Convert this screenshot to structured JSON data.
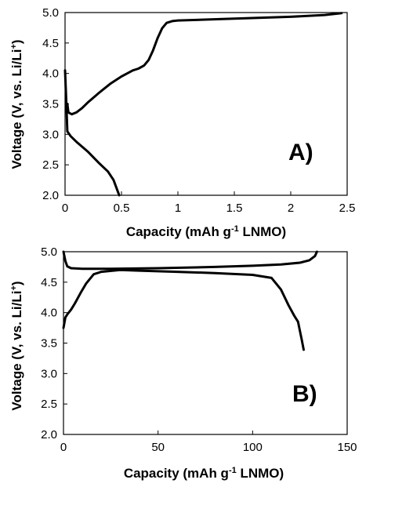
{
  "chart_data": [
    {
      "type": "line",
      "panel_label": "A)",
      "xlabel": "Capacity (mAh g-1 LNMO)",
      "xlabel_parts": {
        "pre": "Capacity (mAh g",
        "sup": "-1",
        "post": " LNMO)"
      },
      "ylabel": "Voltage (V, vs. Li/Li+)",
      "ylabel_parts": {
        "pre": "Voltage (V, vs. Li/Li",
        "sup": "+",
        "post": ")"
      },
      "xlim": [
        0,
        2.5
      ],
      "ylim": [
        2.0,
        5.0
      ],
      "xticks": [
        "0",
        "0.5",
        "1",
        "1.5",
        "2",
        "2.5"
      ],
      "yticks": [
        "2.0",
        "2.5",
        "3.0",
        "3.5",
        "4.0",
        "4.5",
        "5.0"
      ],
      "grid": false,
      "series": [
        {
          "x": [
            0.02,
            0.03,
            0.06,
            0.1,
            0.15,
            0.2,
            0.3,
            0.4,
            0.5,
            0.55,
            0.6,
            0.65,
            0.7,
            0.74,
            0.78,
            0.82,
            0.86,
            0.9,
            0.95,
            1.0,
            1.5,
            2.0,
            2.3,
            2.45
          ],
          "y": [
            3.5,
            3.36,
            3.33,
            3.36,
            3.43,
            3.52,
            3.68,
            3.83,
            3.95,
            4.0,
            4.05,
            4.08,
            4.13,
            4.22,
            4.38,
            4.58,
            4.74,
            4.83,
            4.86,
            4.87,
            4.9,
            4.93,
            4.96,
            4.99
          ]
        },
        {
          "x": [
            0.0,
            0.01,
            0.02,
            0.05,
            0.1,
            0.2,
            0.3,
            0.38,
            0.43,
            0.46,
            0.48
          ],
          "y": [
            4.05,
            3.6,
            3.05,
            2.97,
            2.88,
            2.72,
            2.53,
            2.39,
            2.25,
            2.1,
            2.0
          ]
        }
      ]
    },
    {
      "type": "line",
      "panel_label": "B)",
      "xlabel": "Capacity (mAh g-1 LNMO)",
      "xlabel_parts": {
        "pre": "Capacity (mAh g",
        "sup": "-1",
        "post": " LNMO)"
      },
      "ylabel": "Voltage (V, vs. Li/Li+)",
      "ylabel_parts": {
        "pre": "Voltage (V, vs. Li/Li",
        "sup": "+",
        "post": ")"
      },
      "xlim": [
        0,
        150
      ],
      "ylim": [
        2.0,
        5.0
      ],
      "xticks": [
        "0",
        "50",
        "100",
        "150"
      ],
      "yticks": [
        "2.0",
        "2.5",
        "3.0",
        "3.5",
        "4.0",
        "4.5",
        "5.0"
      ],
      "grid": false,
      "series": [
        {
          "x": [
            0,
            1,
            2,
            4,
            6,
            9,
            12,
            16,
            20,
            30,
            40,
            60,
            80,
            100,
            110,
            115,
            119,
            122,
            124,
            125,
            126,
            127
          ],
          "y": [
            3.75,
            3.92,
            3.97,
            4.05,
            4.15,
            4.32,
            4.48,
            4.63,
            4.67,
            4.7,
            4.69,
            4.67,
            4.65,
            4.62,
            4.57,
            4.38,
            4.12,
            3.95,
            3.85,
            3.7,
            3.55,
            3.39
          ]
        },
        {
          "x": [
            0,
            1,
            2,
            4,
            10,
            25,
            50,
            80,
            100,
            115,
            125,
            130,
            133,
            134
          ],
          "y": [
            5.0,
            4.85,
            4.76,
            4.73,
            4.72,
            4.72,
            4.73,
            4.75,
            4.77,
            4.79,
            4.82,
            4.86,
            4.93,
            5.0
          ]
        }
      ]
    }
  ]
}
